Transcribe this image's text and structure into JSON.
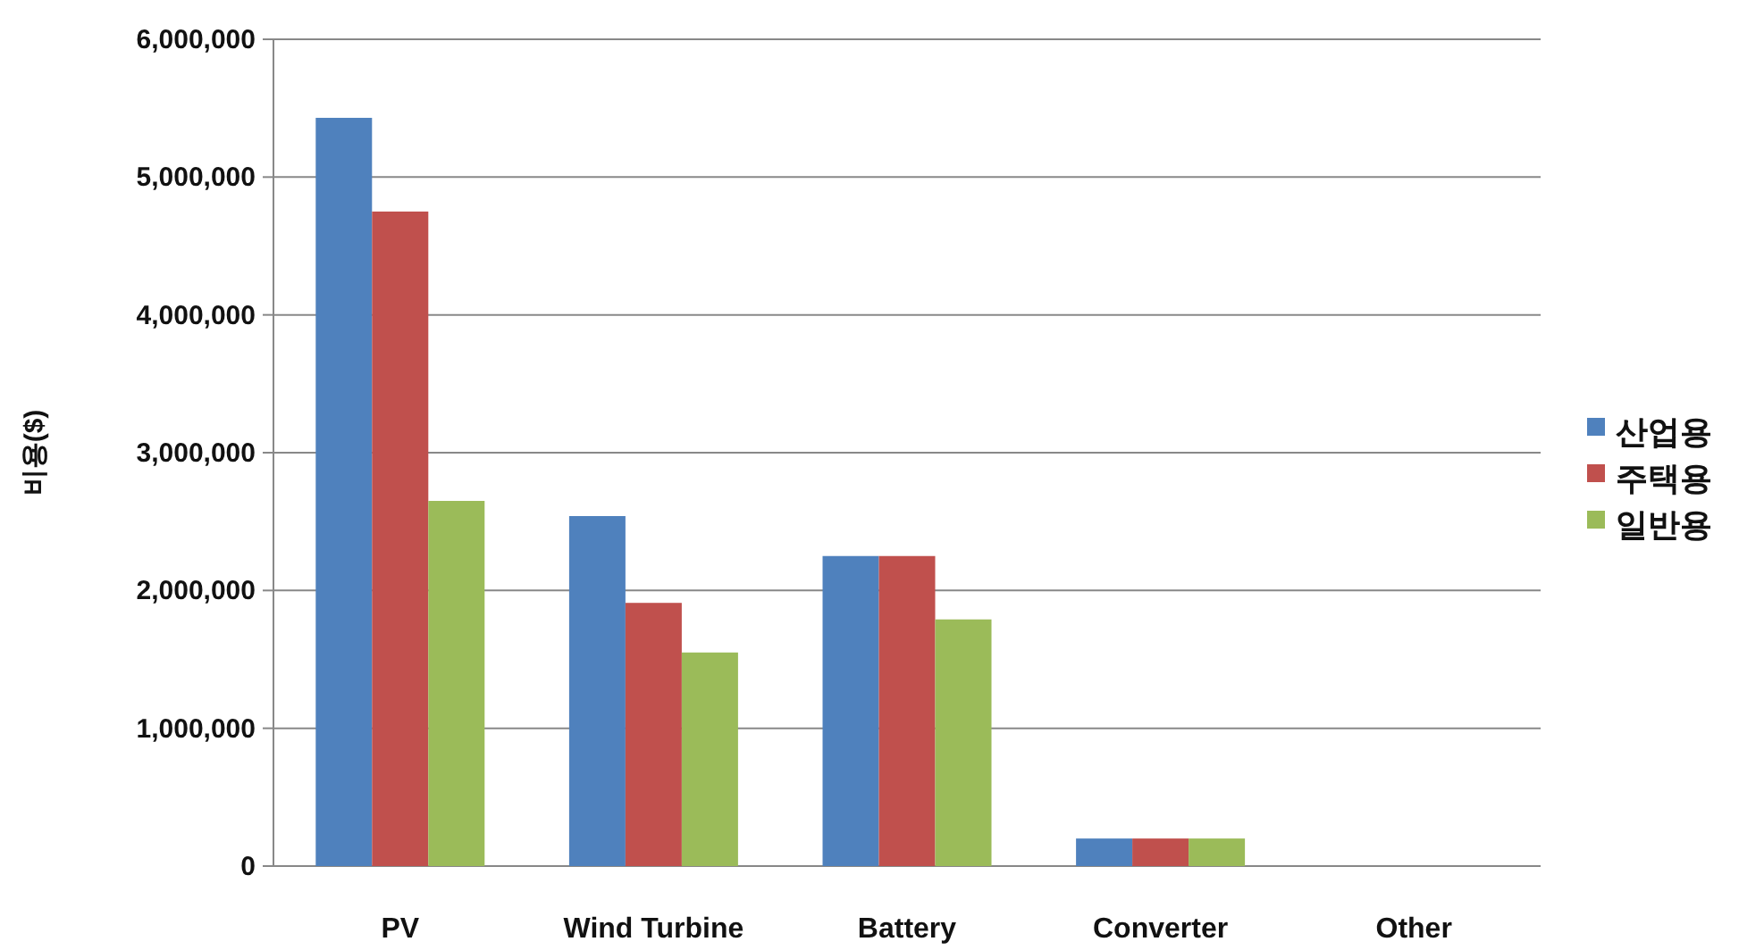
{
  "chart_data": {
    "type": "bar",
    "ylabel": "비용($)",
    "categories": [
      "PV",
      "Wind Turbine",
      "Battery",
      "Converter",
      "Other"
    ],
    "series": [
      {
        "name": "산업용",
        "color": "#4f81bd",
        "values": [
          5430000,
          2540000,
          2250000,
          200000,
          0
        ]
      },
      {
        "name": "주택용",
        "color": "#c0504d",
        "values": [
          4750000,
          1910000,
          2250000,
          200000,
          0
        ]
      },
      {
        "name": "일반용",
        "color": "#9bbb59",
        "values": [
          2650000,
          1550000,
          1790000,
          200000,
          0
        ]
      }
    ],
    "ylim": [
      0,
      6000000
    ],
    "yticks": [
      {
        "value": 0,
        "label": "0"
      },
      {
        "value": 1000000,
        "label": "1,000,000"
      },
      {
        "value": 2000000,
        "label": "2,000,000"
      },
      {
        "value": 3000000,
        "label": "3,000,000"
      },
      {
        "value": 4000000,
        "label": "4,000,000"
      },
      {
        "value": 5000000,
        "label": "5,000,000"
      },
      {
        "value": 6000000,
        "label": "6,000,000"
      }
    ],
    "grid": "y",
    "legend": "right"
  }
}
